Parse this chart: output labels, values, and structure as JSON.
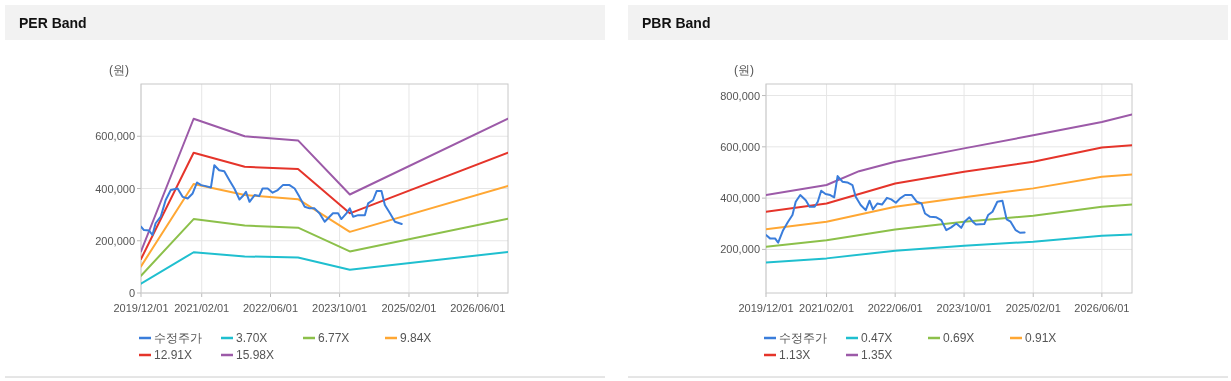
{
  "chart_data": [
    {
      "type": "line",
      "title": "PER Band",
      "ylabel": "(원)",
      "grid": true,
      "legend": "bottom",
      "xlim": [
        "2019-12-01",
        "2026-12-31"
      ],
      "ylim": [
        0,
        800000
      ],
      "xticks": [
        {
          "value": "2019-12-01",
          "label": "2019/12/01"
        },
        {
          "value": "2021-02-01",
          "label": "2021/02/01"
        },
        {
          "value": "2022-06-01",
          "label": "2022/06/01"
        },
        {
          "value": "2023-10-01",
          "label": "2023/10/01"
        },
        {
          "value": "2025-02-01",
          "label": "2025/02/01"
        },
        {
          "value": "2026-06-01",
          "label": "2026/06/01"
        }
      ],
      "yticks": [
        0,
        {
          "value": 200000,
          "label": "200,000"
        },
        {
          "value": 400000,
          "label": "400,000"
        },
        {
          "value": 600000,
          "label": "600,000"
        }
      ],
      "series": [
        {
          "name": "수정주가",
          "color": "#3a7ddb",
          "x": [
            "2019-12-01",
            "2019-12-22",
            "2020-01-27",
            "2020-02-20",
            "2020-03-13",
            "2020-04-18",
            "2020-05-23",
            "2020-06-28",
            "2020-08-15",
            "2020-09-19",
            "2020-10-25",
            "2020-11-29",
            "2020-12-30",
            "2021-01-28",
            "2021-03-01",
            "2021-04-07",
            "2021-05-01",
            "2021-06-04",
            "2021-07-10",
            "2021-08-15",
            "2021-09-19",
            "2021-10-25",
            "2021-11-18",
            "2021-12-10",
            "2022-01-04",
            "2022-02-09",
            "2022-03-13",
            "2022-04-06",
            "2022-05-12",
            "2022-06-16",
            "2022-07-22",
            "2022-08-27",
            "2022-10-13",
            "2022-11-18",
            "2022-12-22",
            "2023-01-28",
            "2023-03-03",
            "2023-04-07",
            "2023-05-12",
            "2023-06-18",
            "2023-07-22",
            "2023-08-15",
            "2023-09-20",
            "2023-10-13",
            "2023-11-18",
            "2023-12-12",
            "2024-01-04",
            "2024-02-09",
            "2024-03-27",
            "2024-04-19",
            "2024-05-24",
            "2024-06-18",
            "2024-07-22",
            "2024-08-15",
            "2024-09-20",
            "2024-10-25",
            "2024-12-12"
          ],
          "values": [
            254000,
            241000,
            239000,
            222000,
            267000,
            292000,
            356000,
            394000,
            400000,
            368000,
            362000,
            381000,
            423000,
            413000,
            409000,
            404000,
            489000,
            470000,
            466000,
            432000,
            400000,
            358000,
            371000,
            387000,
            349000,
            375000,
            371000,
            400000,
            400000,
            384000,
            394000,
            413000,
            413000,
            400000,
            368000,
            330000,
            324000,
            324000,
            305000,
            273000,
            292000,
            305000,
            305000,
            283000,
            305000,
            324000,
            292000,
            298000,
            298000,
            343000,
            356000,
            390000,
            390000,
            337000,
            305000,
            273000,
            264000
          ]
        },
        {
          "name": "3.70X",
          "color": "#1fbfcf",
          "x": [
            "2019-12-01",
            "2020-12-06",
            "2021-12-01",
            "2022-12-12",
            "2023-12-12",
            "2026-12-31"
          ],
          "values": [
            36000,
            156000,
            140000,
            136000,
            89000,
            157000
          ]
        },
        {
          "name": "6.77X",
          "color": "#8cc04a",
          "x": [
            "2019-12-01",
            "2020-12-06",
            "2021-12-01",
            "2022-12-12",
            "2023-12-12",
            "2026-12-31"
          ],
          "values": [
            66000,
            283000,
            258000,
            250000,
            159000,
            284000
          ]
        },
        {
          "name": "9.84X",
          "color": "#ffa733",
          "x": [
            "2019-12-01",
            "2020-12-06",
            "2021-12-01",
            "2022-12-12",
            "2023-12-12",
            "2026-12-31"
          ],
          "values": [
            102000,
            417000,
            375000,
            359000,
            234000,
            410000
          ]
        },
        {
          "name": "12.91X",
          "color": "#e5342a",
          "x": [
            "2019-12-01",
            "2020-12-06",
            "2021-12-01",
            "2022-12-12",
            "2023-12-12",
            "2026-12-31"
          ],
          "values": [
            130000,
            537000,
            483000,
            475000,
            305000,
            537000
          ]
        },
        {
          "name": "15.98X",
          "color": "#9c5aa8",
          "x": [
            "2019-12-01",
            "2020-12-06",
            "2021-12-01",
            "2022-12-12",
            "2023-12-12",
            "2026-12-31"
          ],
          "values": [
            159000,
            667000,
            600000,
            584000,
            377000,
            667000
          ]
        }
      ]
    },
    {
      "type": "line",
      "title": "PBR Band",
      "ylabel": "(원)",
      "grid": true,
      "legend": "bottom",
      "xlim": [
        "2019-12-01",
        "2026-12-31"
      ],
      "ylim": [
        30000,
        845000
      ],
      "xticks": [
        {
          "value": "2019-12-01",
          "label": "2019/12/01"
        },
        {
          "value": "2021-02-01",
          "label": "2021/02/01"
        },
        {
          "value": "2022-06-01",
          "label": "2022/06/01"
        },
        {
          "value": "2023-10-01",
          "label": "2023/10/01"
        },
        {
          "value": "2025-02-01",
          "label": "2025/02/01"
        },
        {
          "value": "2026-06-01",
          "label": "2026/06/01"
        }
      ],
      "yticks": [
        {
          "value": 200000,
          "label": "200,000"
        },
        {
          "value": 400000,
          "label": "400,000"
        },
        {
          "value": 600000,
          "label": "600,000"
        },
        {
          "value": 800000,
          "label": "800,000"
        }
      ],
      "series": [
        {
          "name": "수정주가",
          "color": "#3a7ddb",
          "x": [
            "2019-12-01",
            "2019-12-29",
            "2020-02-03",
            "2020-02-25",
            "2020-03-31",
            "2020-05-05",
            "2020-06-05",
            "2020-06-28",
            "2020-07-30",
            "2020-09-07",
            "2020-10-04",
            "2020-11-09",
            "2020-12-01",
            "2020-12-25",
            "2021-01-25",
            "2021-02-27",
            "2021-03-27",
            "2021-04-20",
            "2021-05-24",
            "2021-06-28",
            "2021-08-03",
            "2021-08-26",
            "2021-09-30",
            "2021-11-05",
            "2021-12-02",
            "2021-12-26",
            "2022-01-26",
            "2022-02-28",
            "2022-04-04",
            "2022-05-04",
            "2022-06-06",
            "2022-07-06",
            "2022-08-10",
            "2022-09-26",
            "2022-10-31",
            "2022-12-05",
            "2022-12-29",
            "2023-02-03",
            "2023-03-19",
            "2023-04-23",
            "2023-05-28",
            "2023-07-02",
            "2023-08-07",
            "2023-09-11",
            "2023-10-04",
            "2023-11-08",
            "2023-12-01",
            "2023-12-24",
            "2024-02-21",
            "2024-03-19",
            "2024-04-19",
            "2024-05-23",
            "2024-06-28",
            "2024-07-28",
            "2024-08-25",
            "2024-09-30",
            "2024-10-30",
            "2024-12-02"
          ],
          "values": [
            256000,
            243000,
            243000,
            226000,
            275000,
            308000,
            334000,
            386000,
            412000,
            392000,
            366000,
            366000,
            386000,
            429000,
            416000,
            412000,
            403000,
            486000,
            464000,
            461000,
            451000,
            405000,
            373000,
            353000,
            390000,
            356000,
            379000,
            375000,
            401000,
            395000,
            382000,
            399000,
            412000,
            412000,
            386000,
            379000,
            340000,
            327000,
            325000,
            314000,
            275000,
            286000,
            301000,
            284000,
            308000,
            325000,
            308000,
            297000,
            299000,
            334000,
            347000,
            386000,
            390000,
            317000,
            308000,
            275000,
            265000,
            266000
          ]
        },
        {
          "name": "0.47X",
          "color": "#1fbfcf",
          "x": [
            "2019-12-01",
            "2021-02-01",
            "2022-06-01",
            "2023-10-01",
            "2025-02-01",
            "2026-06-01",
            "2026-12-31"
          ],
          "values": [
            149000,
            165000,
            195000,
            214000,
            230000,
            253000,
            258000
          ]
        },
        {
          "name": "0.69X",
          "color": "#8cc04a",
          "x": [
            "2019-12-01",
            "2021-02-01",
            "2022-06-01",
            "2023-10-01",
            "2025-02-01",
            "2026-06-01",
            "2026-12-31"
          ],
          "values": [
            210000,
            236000,
            278000,
            308000,
            331000,
            366000,
            375000
          ]
        },
        {
          "name": "0.91X",
          "color": "#ffa733",
          "x": [
            "2019-12-01",
            "2021-02-01",
            "2022-06-01",
            "2023-10-01",
            "2025-02-01",
            "2026-06-01",
            "2026-12-31"
          ],
          "values": [
            279000,
            308000,
            366000,
            403000,
            438000,
            483000,
            492000
          ]
        },
        {
          "name": "1.13X",
          "color": "#e5342a",
          "x": [
            "2019-12-01",
            "2021-02-01",
            "2022-06-01",
            "2023-10-01",
            "2025-02-01",
            "2026-06-01",
            "2026-12-31"
          ],
          "values": [
            347000,
            379000,
            457000,
            503000,
            542000,
            597000,
            606000
          ]
        },
        {
          "name": "1.35X",
          "color": "#9c5aa8",
          "x": [
            "2019-12-01",
            "2021-02-01",
            "2021-09-19",
            "2022-06-01",
            "2023-10-01",
            "2025-02-01",
            "2026-06-01",
            "2026-12-31"
          ],
          "values": [
            412000,
            451000,
            505000,
            542000,
            594000,
            645000,
            697000,
            726000
          ]
        }
      ]
    }
  ]
}
